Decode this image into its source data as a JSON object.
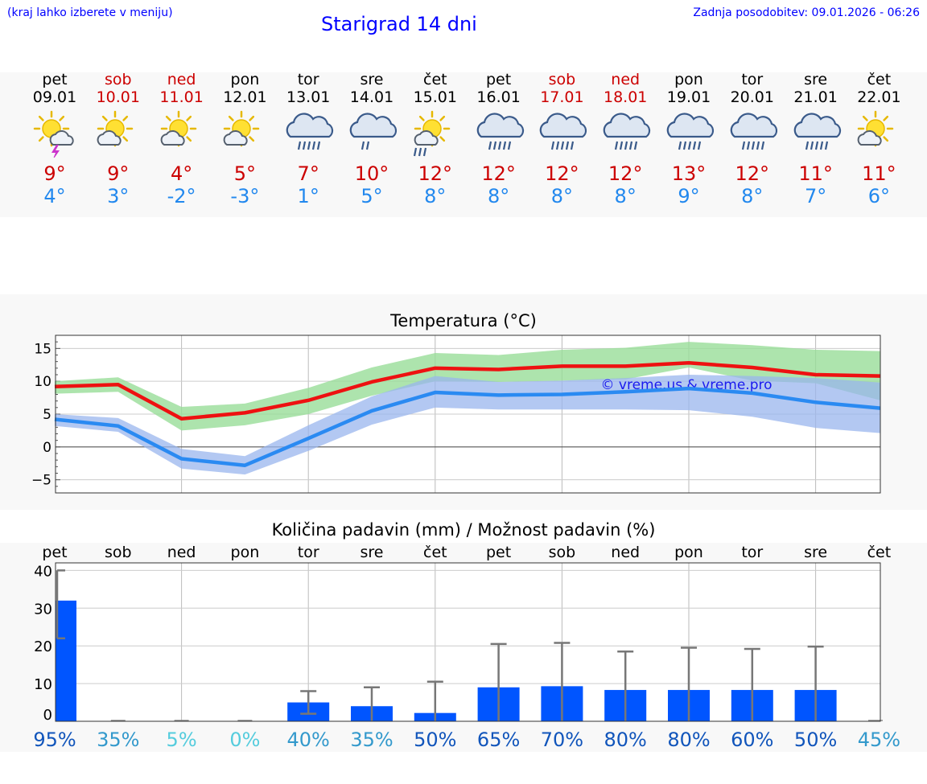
{
  "header": {
    "menu_hint": "(kraj lahko izberete v meniju)",
    "title": "Starigrad 14 dni",
    "updated": "Zadnja posodobitev: 09.01.2026 - 06:26"
  },
  "days": [
    {
      "name": "pet",
      "date": "09.01",
      "weekend": false,
      "icon": "sun-cloud-thunder",
      "hi": "9°",
      "lo": "4°"
    },
    {
      "name": "sob",
      "date": "10.01",
      "weekend": true,
      "icon": "sun-cloud",
      "hi": "9°",
      "lo": "3°"
    },
    {
      "name": "ned",
      "date": "11.01",
      "weekend": true,
      "icon": "sun-cloud",
      "hi": "4°",
      "lo": "-2°"
    },
    {
      "name": "pon",
      "date": "12.01",
      "weekend": false,
      "icon": "sun-cloud",
      "hi": "5°",
      "lo": "-3°"
    },
    {
      "name": "tor",
      "date": "13.01",
      "weekend": false,
      "icon": "cloud-rain",
      "hi": "7°",
      "lo": "1°"
    },
    {
      "name": "sre",
      "date": "14.01",
      "weekend": false,
      "icon": "cloud-light-rain",
      "hi": "10°",
      "lo": "5°"
    },
    {
      "name": "čet",
      "date": "15.01",
      "weekend": false,
      "icon": "sun-cloud-rain",
      "hi": "12°",
      "lo": "8°"
    },
    {
      "name": "pet",
      "date": "16.01",
      "weekend": false,
      "icon": "cloud-rain",
      "hi": "12°",
      "lo": "8°"
    },
    {
      "name": "sob",
      "date": "17.01",
      "weekend": true,
      "icon": "cloud-rain",
      "hi": "12°",
      "lo": "8°"
    },
    {
      "name": "ned",
      "date": "18.01",
      "weekend": true,
      "icon": "cloud-rain",
      "hi": "12°",
      "lo": "8°"
    },
    {
      "name": "pon",
      "date": "19.01",
      "weekend": false,
      "icon": "cloud-rain",
      "hi": "13°",
      "lo": "9°"
    },
    {
      "name": "tor",
      "date": "20.01",
      "weekend": false,
      "icon": "cloud-rain",
      "hi": "12°",
      "lo": "8°"
    },
    {
      "name": "sre",
      "date": "21.01",
      "weekend": false,
      "icon": "cloud-rain",
      "hi": "11°",
      "lo": "7°"
    },
    {
      "name": "čet",
      "date": "22.01",
      "weekend": false,
      "icon": "sun-cloud",
      "hi": "11°",
      "lo": "6°"
    }
  ],
  "colors": {
    "hi_line": "#ee1111",
    "lo_line": "#2a8af2",
    "hi_band": "#99dd99",
    "lo_band": "#99b6ee",
    "bar": "#0055ff",
    "hi_text": "#cc0000",
    "lo_text": "#2288ee",
    "title": "#0000ff"
  },
  "chart_data": [
    {
      "type": "line",
      "title": "Temperatura (°C)",
      "watermark": "© vreme.us & vreme.pro",
      "ylim": [
        -7,
        17
      ],
      "yticks": [
        15,
        10,
        5,
        0,
        -5
      ],
      "ytick_labels": [
        "15",
        "10",
        "5",
        "0",
        "−5"
      ],
      "series": [
        {
          "name": "max",
          "values": [
            9.2,
            9.5,
            4.3,
            5.2,
            7.1,
            9.9,
            12.0,
            11.8,
            12.3,
            12.3,
            12.8,
            12.1,
            11.0,
            10.8
          ],
          "band_low": [
            8.1,
            8.4,
            2.5,
            3.3,
            5.0,
            7.8,
            10.0,
            9.9,
            10.1,
            10.3,
            12.1,
            10.1,
            9.7,
            7.1
          ],
          "band_high": [
            10.0,
            10.6,
            6.1,
            6.6,
            9.0,
            12.1,
            14.3,
            14.0,
            14.8,
            15.1,
            16.0,
            15.5,
            14.8,
            14.6
          ]
        },
        {
          "name": "min",
          "values": [
            4.2,
            3.2,
            -1.8,
            -2.8,
            1.3,
            5.5,
            8.3,
            7.9,
            8.0,
            8.4,
            8.9,
            8.2,
            6.8,
            5.9
          ],
          "band_low": [
            3.2,
            2.3,
            -3.3,
            -4.2,
            -0.6,
            3.4,
            6.0,
            5.7,
            5.7,
            5.7,
            5.6,
            4.6,
            2.9,
            2.1
          ],
          "band_high": [
            5.0,
            4.4,
            -0.3,
            -1.4,
            3.3,
            7.7,
            10.8,
            9.9,
            10.1,
            10.5,
            11.0,
            10.8,
            10.5,
            9.8
          ]
        }
      ]
    },
    {
      "type": "bar",
      "title": "Količina padavin (mm) / Možnost padavin (%)",
      "categories": [
        "pet",
        "sob",
        "ned",
        "pon",
        "tor",
        "sre",
        "čet",
        "pet",
        "sob",
        "ned",
        "pon",
        "tor",
        "sre",
        "čet"
      ],
      "ylim": [
        0,
        42
      ],
      "yticks": [
        40,
        30,
        20,
        10,
        0
      ],
      "ytick_labels": [
        "40",
        "30",
        "20",
        "10",
        "0"
      ],
      "values": [
        32,
        0,
        0,
        0,
        5.0,
        4.0,
        2.2,
        9.0,
        9.3,
        8.3,
        8.3,
        8.3,
        8.3,
        0
      ],
      "range_low": [
        22,
        0,
        0,
        0,
        2.0,
        0,
        0,
        0,
        0,
        0,
        0,
        0,
        0,
        0
      ],
      "range_high": [
        40,
        0,
        0,
        0,
        8.0,
        9.0,
        10.5,
        20.5,
        20.8,
        18.5,
        19.5,
        19.2,
        19.8,
        0
      ],
      "probability_labels": [
        "95%",
        "35%",
        "5%",
        "0%",
        "40%",
        "35%",
        "50%",
        "65%",
        "70%",
        "80%",
        "80%",
        "60%",
        "50%",
        "45%"
      ],
      "probability_colors": [
        "#1155bb",
        "#3399cc",
        "#55ccdd",
        "#55ccdd",
        "#3399cc",
        "#3399cc",
        "#1155bb",
        "#1155bb",
        "#1155bb",
        "#1155bb",
        "#1155bb",
        "#1155bb",
        "#1155bb",
        "#3399cc"
      ]
    }
  ]
}
